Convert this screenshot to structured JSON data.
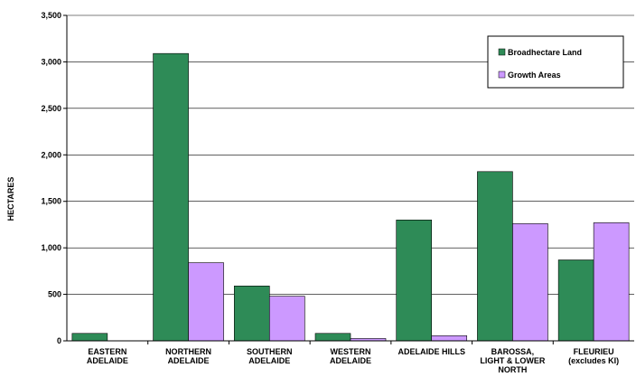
{
  "chart_data": {
    "type": "bar",
    "title": "",
    "xlabel": "",
    "ylabel": "HECTARES",
    "ylim": [
      0,
      3500
    ],
    "yticks": [
      "0",
      "500",
      "1,000",
      "1,500",
      "2,000",
      "2,500",
      "3,000",
      "3,500"
    ],
    "grid": true,
    "legend_position": "top-right",
    "categories": [
      [
        "EASTERN",
        "ADELAIDE"
      ],
      [
        "NORTHERN",
        "ADELAIDE"
      ],
      [
        "SOUTHERN",
        "ADELAIDE"
      ],
      [
        "WESTERN",
        "ADELAIDE"
      ],
      [
        "ADELAIDE HILLS"
      ],
      [
        "BAROSSA,",
        "LIGHT & LOWER",
        "NORTH"
      ],
      [
        "FLEURIEU",
        "(excludes KI)"
      ]
    ],
    "series": [
      {
        "name": "Broadhectare Land",
        "color": "#2e8b57",
        "values": [
          80,
          3090,
          590,
          80,
          1300,
          1820,
          870
        ]
      },
      {
        "name": "Growth Areas",
        "color": "#cc99ff",
        "values": [
          0,
          840,
          480,
          25,
          55,
          1260,
          1270
        ]
      }
    ]
  }
}
